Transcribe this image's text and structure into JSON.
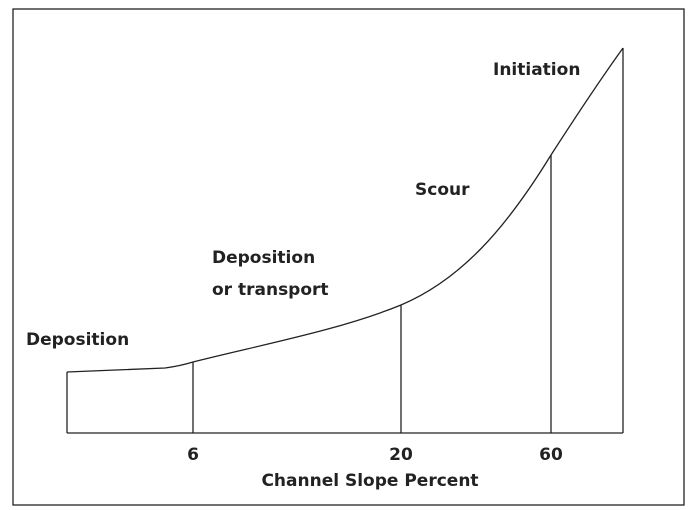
{
  "labels": {
    "deposition": "Deposition",
    "deposition_transport": [
      "Deposition",
      "or transport"
    ],
    "scour": "Scour",
    "initiation": "Initiation"
  },
  "axis": {
    "ticks": [
      "6",
      "20",
      "60"
    ],
    "title": "Channel Slope Percent"
  }
}
